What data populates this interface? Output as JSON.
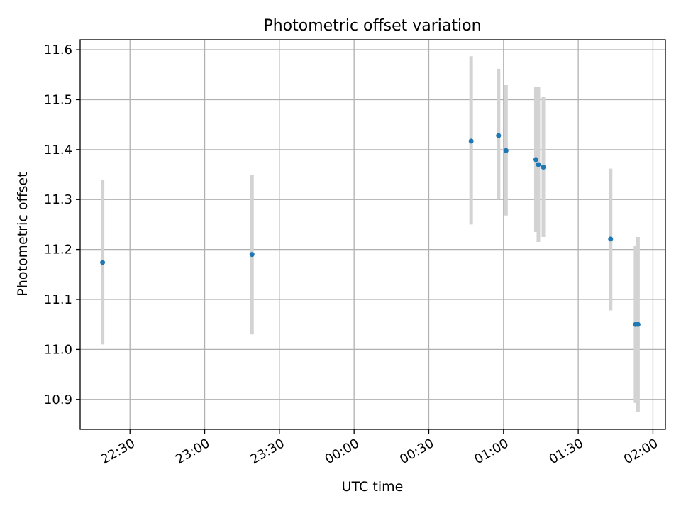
{
  "chart_data": {
    "type": "scatter",
    "title": "Photometric offset variation",
    "xlabel": "UTC time",
    "ylabel": "Photometric offset",
    "grid": true,
    "xlim": [
      "22:10",
      "02:05"
    ],
    "ylim": [
      10.84,
      11.62
    ],
    "x_tick_labels": [
      "22:30",
      "23:00",
      "23:30",
      "00:00",
      "00:30",
      "01:00",
      "01:30",
      "02:00"
    ],
    "y_tick_labels": [
      "10.9",
      "11.0",
      "11.1",
      "11.2",
      "11.3",
      "11.4",
      "11.5",
      "11.6"
    ],
    "y_ticks": [
      10.9,
      11.0,
      11.1,
      11.2,
      11.3,
      11.4,
      11.5,
      11.6
    ],
    "point_color": "#1f77b4",
    "errorbar_color": "#d3d3d3",
    "points": [
      {
        "x": "22:19",
        "y": 11.174,
        "ylow": 11.01,
        "yhigh": 11.34
      },
      {
        "x": "23:19",
        "y": 11.19,
        "ylow": 11.03,
        "yhigh": 11.35
      },
      {
        "x": "00:47",
        "y": 11.417,
        "ylow": 11.25,
        "yhigh": 11.587
      },
      {
        "x": "00:58",
        "y": 11.428,
        "ylow": 11.3,
        "yhigh": 11.562
      },
      {
        "x": "01:01",
        "y": 11.398,
        "ylow": 11.268,
        "yhigh": 11.529
      },
      {
        "x": "01:13",
        "y": 11.38,
        "ylow": 11.235,
        "yhigh": 11.525
      },
      {
        "x": "01:14",
        "y": 11.37,
        "ylow": 11.215,
        "yhigh": 11.526
      },
      {
        "x": "01:16",
        "y": 11.365,
        "ylow": 11.225,
        "yhigh": 11.505
      },
      {
        "x": "01:43",
        "y": 11.221,
        "ylow": 11.078,
        "yhigh": 11.362
      },
      {
        "x": "01:53",
        "y": 11.05,
        "ylow": 10.893,
        "yhigh": 11.208
      },
      {
        "x": "01:54",
        "y": 11.05,
        "ylow": 10.875,
        "yhigh": 11.225
      }
    ]
  }
}
